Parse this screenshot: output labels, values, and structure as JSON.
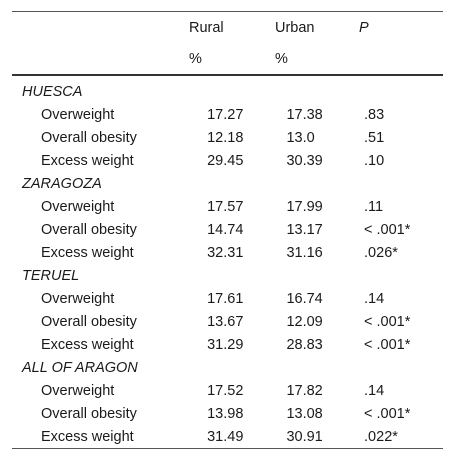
{
  "header": {
    "rural_label": "Rural",
    "urban_label": "Urban",
    "p_label": "P",
    "rural_unit": "%",
    "urban_unit": "%"
  },
  "groups": [
    {
      "name": "HUESCA",
      "rows": [
        {
          "label": "Overweight",
          "rural": "17.27",
          "urban": "17.38",
          "p": ".83"
        },
        {
          "label": "Overall obesity",
          "rural": "12.18",
          "urban": "13.0",
          "p": ".51"
        },
        {
          "label": "Excess weight",
          "rural": "29.45",
          "urban": "30.39",
          "p": ".10"
        }
      ]
    },
    {
      "name": "ZARAGOZA",
      "rows": [
        {
          "label": "Overweight",
          "rural": "17.57",
          "urban": "17.99",
          "p": ".11"
        },
        {
          "label": "Overall obesity",
          "rural": "14.74",
          "urban": "13.17",
          "p": "< .001*"
        },
        {
          "label": "Excess weight",
          "rural": "32.31",
          "urban": "31.16",
          "p": ".026*"
        }
      ]
    },
    {
      "name": "TERUEL",
      "rows": [
        {
          "label": "Overweight",
          "rural": "17.61",
          "urban": "16.74",
          "p": ".14"
        },
        {
          "label": "Overall obesity",
          "rural": "13.67",
          "urban": "12.09",
          "p": "< .001*"
        },
        {
          "label": "Excess weight",
          "rural": "31.29",
          "urban": "28.83",
          "p": "< .001*"
        }
      ]
    },
    {
      "name": "ALL OF ARAGON",
      "rows": [
        {
          "label": "Overweight",
          "rural": "17.52",
          "urban": "17.82",
          "p": ".14"
        },
        {
          "label": "Overall obesity",
          "rural": "13.98",
          "urban": "13.08",
          "p": "< .001*"
        },
        {
          "label": "Excess weight",
          "rural": "31.49",
          "urban": "30.91",
          "p": ".022*"
        }
      ]
    }
  ]
}
